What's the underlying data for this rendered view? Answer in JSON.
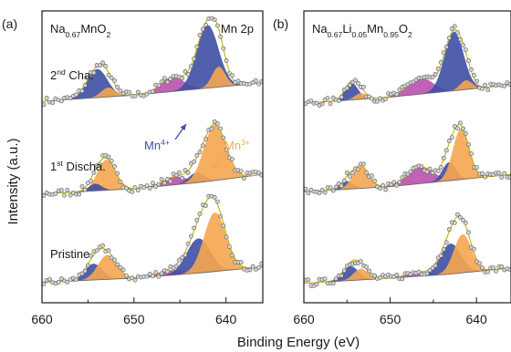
{
  "chart_data": {
    "type": "line",
    "ylabel": "Intensity (a.u.)",
    "xlabel": "Binding Energy (eV)",
    "xlim": [
      660,
      636
    ],
    "xticks": [
      "660",
      "650",
      "640"
    ],
    "colors": {
      "Mn4+": "#3e4fa3",
      "Mn3+": "#f5a650",
      "satellite": "#b547a8",
      "envelope": "#c8b400",
      "background": "#6a6a6a"
    },
    "panels": [
      {
        "tag": "(a)",
        "formula": {
          "parts": [
            {
              "t": "Na",
              "s": "n"
            },
            {
              "t": "0.67",
              "s": "sub"
            },
            {
              "t": "MnO",
              "s": "n"
            },
            {
              "t": "2",
              "s": "sub"
            }
          ]
        },
        "region_label": "Mn 2p",
        "curves": [
          {
            "label": {
              "parts": [
                {
                  "t": "2",
                  "s": "n"
                },
                {
                  "t": "nd",
                  "s": "sup"
                },
                {
                  "t": " Cha.",
                  "s": "n"
                }
              ]
            },
            "offset": 2.0,
            "bg": [
              [
                660,
                0.08
              ],
              [
                650,
                0.14
              ],
              [
                643,
                0.2
              ],
              [
                636,
                0.26
              ]
            ],
            "peaks": [
              {
                "comp": "Mn4+",
                "center": 654.0,
                "fwhm": 2.6,
                "height": 0.28
              },
              {
                "comp": "Mn3+",
                "center": 652.8,
                "fwhm": 1.8,
                "height": 0.09
              },
              {
                "comp": "satellite",
                "center": 645.8,
                "fwhm": 3.0,
                "height": 0.14
              },
              {
                "comp": "Mn4+",
                "center": 642.0,
                "fwhm": 2.8,
                "height": 0.62
              },
              {
                "comp": "Mn3+",
                "center": 640.8,
                "fwhm": 1.7,
                "height": 0.2
              }
            ]
          },
          {
            "label": {
              "parts": [
                {
                  "t": "1",
                  "s": "n"
                },
                {
                  "t": "st",
                  "s": "sup"
                },
                {
                  "t": " Discha.",
                  "s": "n"
                }
              ]
            },
            "offset": 1.0,
            "bg": [
              [
                660,
                0.04
              ],
              [
                650,
                0.09
              ],
              [
                643,
                0.15
              ],
              [
                636,
                0.23
              ]
            ],
            "peaks": [
              {
                "comp": "Mn3+",
                "center": 653.0,
                "fwhm": 2.3,
                "height": 0.3
              },
              {
                "comp": "Mn4+",
                "center": 654.2,
                "fwhm": 1.6,
                "height": 0.07
              },
              {
                "comp": "satellite",
                "center": 645.5,
                "fwhm": 3.0,
                "height": 0.08
              },
              {
                "comp": "Mn4+",
                "center": 643.2,
                "fwhm": 2.0,
                "height": 0.1
              },
              {
                "comp": "Mn3+",
                "center": 641.2,
                "fwhm": 2.8,
                "height": 0.55
              }
            ]
          },
          {
            "label": {
              "parts": [
                {
                  "t": "Pristine",
                  "s": "n"
                }
              ]
            },
            "offset": 0.0,
            "bg": [
              [
                660,
                0.04
              ],
              [
                650,
                0.08
              ],
              [
                643,
                0.13
              ],
              [
                636,
                0.19
              ]
            ],
            "peaks": [
              {
                "comp": "Mn4+",
                "center": 654.4,
                "fwhm": 2.2,
                "height": 0.16
              },
              {
                "comp": "Mn3+",
                "center": 652.9,
                "fwhm": 2.4,
                "height": 0.24
              },
              {
                "comp": "satellite",
                "center": 646.0,
                "fwhm": 3.0,
                "height": 0.05
              },
              {
                "comp": "Mn4+",
                "center": 643.0,
                "fwhm": 3.0,
                "height": 0.34
              },
              {
                "comp": "Mn3+",
                "center": 641.2,
                "fwhm": 2.8,
                "height": 0.58
              }
            ]
          }
        ],
        "annotations": {
          "mn4": {
            "parts": [
              {
                "t": "Mn",
                "s": "n"
              },
              {
                "t": "4+",
                "s": "sup"
              }
            ]
          },
          "mn3": {
            "parts": [
              {
                "t": "Mn",
                "s": "n"
              },
              {
                "t": "3+",
                "s": "sup"
              }
            ]
          }
        }
      },
      {
        "tag": "(b)",
        "formula": {
          "parts": [
            {
              "t": "Na",
              "s": "n"
            },
            {
              "t": "0.67",
              "s": "sub"
            },
            {
              "t": "Li",
              "s": "n"
            },
            {
              "t": "0.05",
              "s": "sub"
            },
            {
              "t": "Mn",
              "s": "n"
            },
            {
              "t": "0.95",
              "s": "sub"
            },
            {
              "t": "O",
              "s": "n"
            },
            {
              "t": "2",
              "s": "sub"
            }
          ]
        },
        "curves": [
          {
            "offset": 2.0,
            "bg": [
              [
                660,
                0.06
              ],
              [
                650,
                0.12
              ],
              [
                643,
                0.18
              ],
              [
                636,
                0.24
              ]
            ],
            "peaks": [
              {
                "comp": "Mn4+",
                "center": 654.5,
                "fwhm": 1.8,
                "height": 0.17
              },
              {
                "comp": "Mn3+",
                "center": 653.4,
                "fwhm": 1.6,
                "height": 0.06
              },
              {
                "comp": "satellite",
                "center": 646.5,
                "fwhm": 3.4,
                "height": 0.16
              },
              {
                "comp": "Mn4+",
                "center": 642.6,
                "fwhm": 2.6,
                "height": 0.58
              },
              {
                "comp": "Mn3+",
                "center": 641.2,
                "fwhm": 1.6,
                "height": 0.09
              }
            ]
          },
          {
            "offset": 1.0,
            "bg": [
              [
                660,
                0.06
              ],
              [
                650,
                0.11
              ],
              [
                643,
                0.17
              ],
              [
                636,
                0.23
              ]
            ],
            "peaks": [
              {
                "comp": "Mn4+",
                "center": 655.0,
                "fwhm": 1.6,
                "height": 0.08
              },
              {
                "comp": "Mn3+",
                "center": 653.4,
                "fwhm": 2.2,
                "height": 0.22
              },
              {
                "comp": "satellite",
                "center": 646.5,
                "fwhm": 3.6,
                "height": 0.16
              },
              {
                "comp": "Mn4+",
                "center": 643.2,
                "fwhm": 1.8,
                "height": 0.18
              },
              {
                "comp": "Mn3+",
                "center": 641.8,
                "fwhm": 2.2,
                "height": 0.5
              }
            ]
          },
          {
            "offset": 0.0,
            "bg": [
              [
                660,
                0.03
              ],
              [
                650,
                0.08
              ],
              [
                643,
                0.12
              ],
              [
                636,
                0.18
              ]
            ],
            "peaks": [
              {
                "comp": "Mn4+",
                "center": 654.6,
                "fwhm": 2.2,
                "height": 0.14
              },
              {
                "comp": "Mn3+",
                "center": 653.4,
                "fwhm": 2.0,
                "height": 0.11
              },
              {
                "comp": "satellite",
                "center": 646.8,
                "fwhm": 3.0,
                "height": 0.04
              },
              {
                "comp": "Mn4+",
                "center": 643.0,
                "fwhm": 2.8,
                "height": 0.3
              },
              {
                "comp": "Mn3+",
                "center": 641.6,
                "fwhm": 2.4,
                "height": 0.38
              }
            ]
          }
        ]
      }
    ]
  }
}
